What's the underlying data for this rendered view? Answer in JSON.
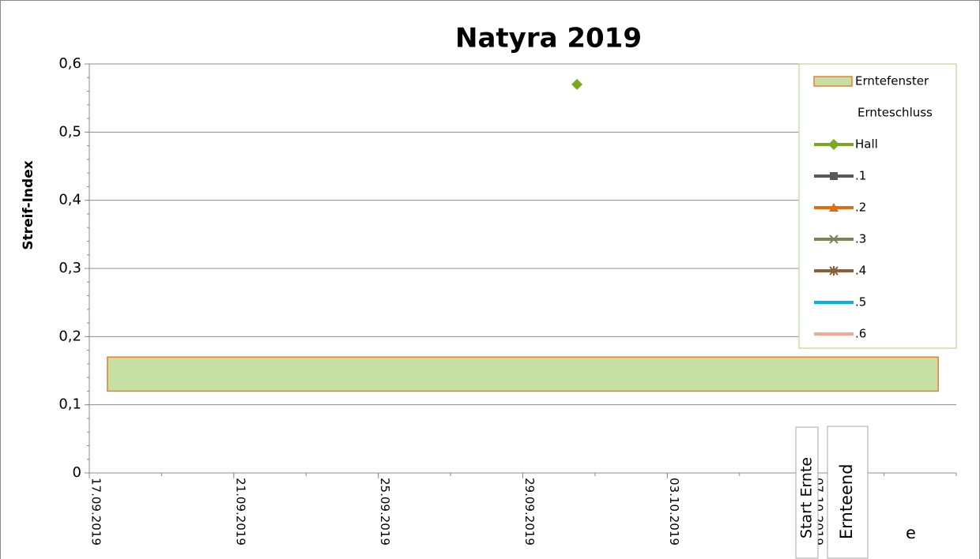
{
  "chart_data": {
    "type": "scatter",
    "title": "Natyra 2019",
    "y_label": "Streif-Index",
    "xlim": [
      "17.09.2019",
      "11.10.2019"
    ],
    "xticks": [
      "17.09.2019",
      "21.09.2019",
      "25.09.2019",
      "29.09.2019",
      "03.10.2019",
      "07.10.2019"
    ],
    "ylim": [
      0,
      0.6
    ],
    "yticks": [
      0,
      {
        "value": 0.1,
        "label": "0,1"
      },
      {
        "value": 0.2,
        "label": "0,2"
      },
      {
        "value": 0.3,
        "label": "0,3"
      },
      {
        "value": 0.4,
        "label": "0,4"
      },
      {
        "value": 0.5,
        "label": "0,5"
      },
      {
        "value": 0.6,
        "label": "0,6"
      }
    ],
    "grid": true,
    "band": {
      "name": "Erntefenster",
      "color": "#c6e0a4",
      "edge": "#ed7d31",
      "x": [
        "17.09.2019",
        "10.10.2019"
      ],
      "y": [
        0.12,
        0.17
      ]
    },
    "legend_extra": "Ernteschluss",
    "series": [
      {
        "name": "Hall",
        "color": "#7aa81e",
        "marker": "diamond",
        "x": [
          "30.09.2019"
        ],
        "values": [
          0.57
        ]
      },
      {
        "name": ".1",
        "color": "#595959",
        "marker": "square",
        "x": [],
        "values": []
      },
      {
        "name": ".2",
        "color": "#e46c0a",
        "marker": "triangle",
        "x": [],
        "values": []
      },
      {
        "name": ".3",
        "color": "#77855a",
        "marker": "x",
        "x": [],
        "values": []
      },
      {
        "name": ".4",
        "color": "#8b5e3c",
        "marker": "star",
        "x": [],
        "values": []
      },
      {
        "name": ".5",
        "color": "#00b0f0",
        "marker": "none",
        "x": [],
        "values": []
      },
      {
        "name": ".6",
        "color": "#f4a896",
        "marker": "none",
        "x": [],
        "values": []
      }
    ],
    "legend": "top-right",
    "annotations": [
      "Start Ernte",
      "Ernteend",
      "e"
    ]
  }
}
